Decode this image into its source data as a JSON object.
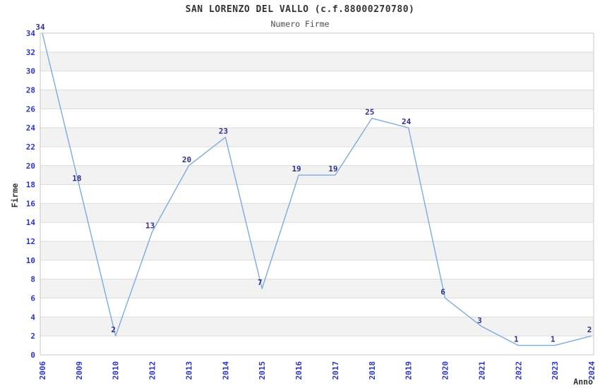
{
  "chart_data": {
    "type": "line",
    "title": "SAN LORENZO DEL VALLO (c.f.88000270780)",
    "subtitle": "Numero Firme",
    "xlabel": "Anno",
    "ylabel": "Firme",
    "categories": [
      "2006",
      "2009",
      "2010",
      "2012",
      "2013",
      "2014",
      "2015",
      "2016",
      "2017",
      "2018",
      "2019",
      "2020",
      "2021",
      "2022",
      "2023",
      "2024"
    ],
    "values": [
      34,
      18,
      2,
      13,
      20,
      23,
      7,
      19,
      19,
      25,
      24,
      6,
      3,
      1,
      1,
      2
    ],
    "ylim": [
      0,
      34
    ],
    "ytick_step": 2,
    "grid": true,
    "stripes": true,
    "legend": "none",
    "point_labels_shown": true
  },
  "colors": {
    "line": "#7eaade",
    "data_label": "#2e2e8f",
    "tick_label": "#2c35c8",
    "stripe": "#f2f2f2",
    "grid": "#dcdcdc",
    "plot_border": "#c8c8c8",
    "title": "#333333",
    "subtitle": "#4d4d4d",
    "axis_title": "#333333",
    "background": "#ffffff"
  }
}
